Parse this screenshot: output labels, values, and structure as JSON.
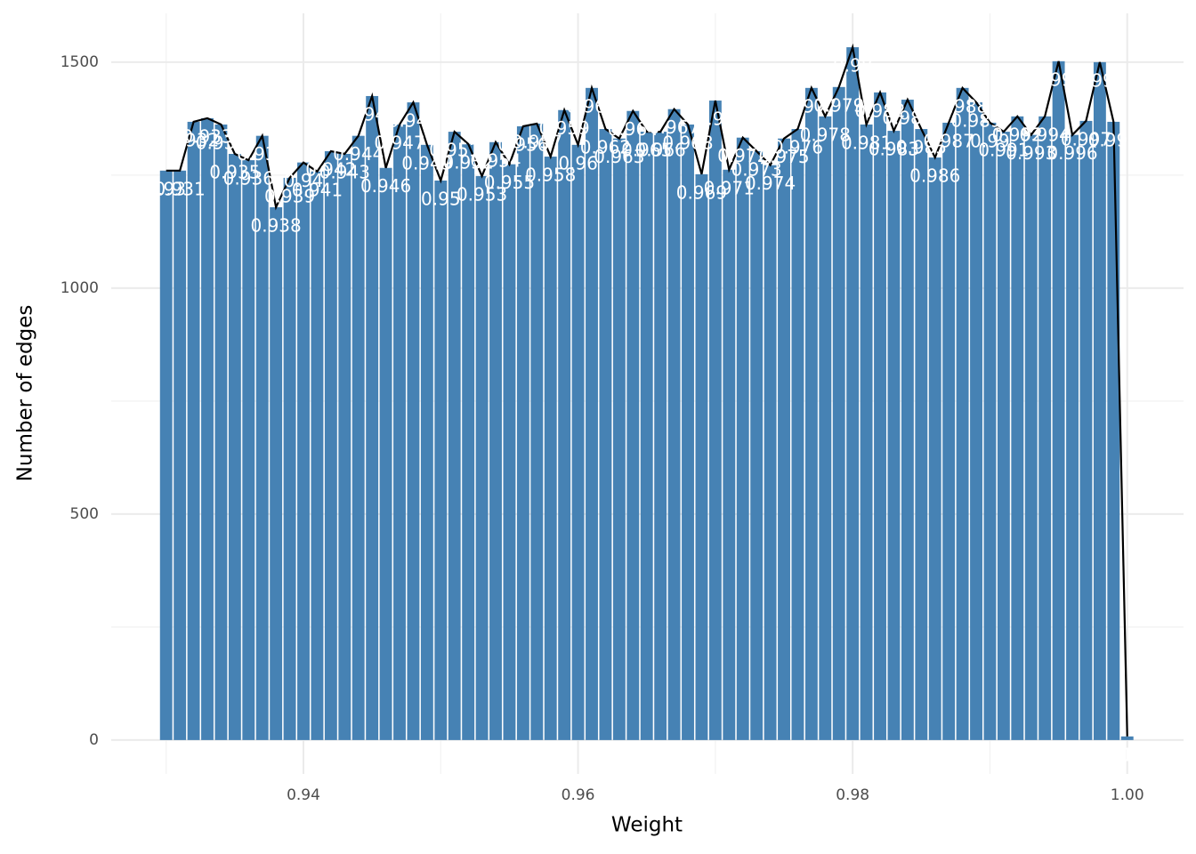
{
  "chart_data": {
    "type": "bar",
    "x_label": "Weight",
    "y_label": "Number of edges",
    "x": [
      0.93,
      0.931,
      0.932,
      0.933,
      0.934,
      0.935,
      0.936,
      0.937,
      0.938,
      0.939,
      0.94,
      0.941,
      0.942,
      0.943,
      0.944,
      0.945,
      0.946,
      0.947,
      0.948,
      0.949,
      0.95,
      0.951,
      0.952,
      0.953,
      0.954,
      0.955,
      0.956,
      0.957,
      0.958,
      0.959,
      0.96,
      0.961,
      0.962,
      0.963,
      0.964,
      0.965,
      0.966,
      0.967,
      0.968,
      0.969,
      0.97,
      0.971,
      0.972,
      0.973,
      0.974,
      0.975,
      0.976,
      0.977,
      0.978,
      0.979,
      0.98,
      0.981,
      0.982,
      0.983,
      0.984,
      0.985,
      0.986,
      0.987,
      0.988,
      0.989,
      0.99,
      0.991,
      0.992,
      0.993,
      0.994,
      0.995,
      0.996,
      0.997,
      0.998,
      0.999,
      1
    ],
    "values": [
      1260,
      1260,
      1368,
      1376,
      1362,
      1297,
      1283,
      1337,
      1179,
      1244,
      1278,
      1258,
      1303,
      1297,
      1337,
      1425,
      1266,
      1362,
      1411,
      1317,
      1238,
      1346,
      1319,
      1248,
      1323,
      1274,
      1358,
      1364,
      1291,
      1394,
      1317,
      1443,
      1352,
      1331,
      1392,
      1346,
      1346,
      1396,
      1362,
      1252,
      1415,
      1262,
      1333,
      1303,
      1272,
      1331,
      1352,
      1443,
      1380,
      1445,
      1533,
      1362,
      1433,
      1348,
      1417,
      1352,
      1289,
      1366,
      1443,
      1411,
      1366,
      1346,
      1380,
      1339,
      1380,
      1502,
      1339,
      1370,
      1500,
      1368,
      8
    ],
    "color": "#4682b4",
    "line": true,
    "line_color": "#000000",
    "xlim": [
      0.926,
      1.0041
    ],
    "ylim": [
      -75,
      1608
    ],
    "xticks": [
      0.94,
      0.96,
      0.98,
      {
        "value": 1,
        "label": "1.00"
      }
    ],
    "yticks": [
      0,
      500,
      1000,
      1500
    ],
    "grid": true
  }
}
